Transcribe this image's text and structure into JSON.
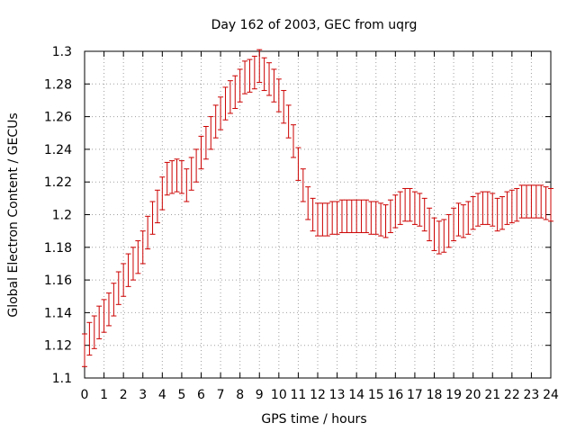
{
  "chart_data": {
    "type": "line",
    "title": "Day 162 of 2003, GEC from uqrg",
    "xlabel": "GPS time / hours",
    "ylabel": "Global Electron Content / GECUs",
    "xlim": [
      0,
      24
    ],
    "ylim": [
      1.1,
      1.3
    ],
    "grid": true,
    "error_bar": 0.01,
    "xticks": [
      "0",
      "1",
      "2",
      "3",
      "4",
      "5",
      "6",
      "7",
      "8",
      "9",
      "10",
      "11",
      "12",
      "13",
      "14",
      "15",
      "16",
      "17",
      "18",
      "19",
      "20",
      "21",
      "22",
      "23",
      "24"
    ],
    "yticks": [
      "1.1",
      "1.12",
      "1.14",
      "1.16",
      "1.18",
      "1.2",
      "1.22",
      "1.24",
      "1.26",
      "1.28",
      "1.3"
    ],
    "series_color": "#cc0000",
    "x": [
      0,
      0.25,
      0.5,
      0.75,
      1,
      1.25,
      1.5,
      1.75,
      2,
      2.25,
      2.5,
      2.75,
      3,
      3.25,
      3.5,
      3.75,
      4,
      4.25,
      4.5,
      4.75,
      5,
      5.25,
      5.5,
      5.75,
      6,
      6.25,
      6.5,
      6.75,
      7,
      7.25,
      7.5,
      7.75,
      8,
      8.25,
      8.5,
      8.75,
      9,
      9.25,
      9.5,
      9.75,
      10,
      10.25,
      10.5,
      10.75,
      11,
      11.25,
      11.5,
      11.75,
      12,
      12.25,
      12.5,
      12.75,
      13,
      13.25,
      13.5,
      13.75,
      14,
      14.25,
      14.5,
      14.75,
      15,
      15.25,
      15.5,
      15.75,
      16,
      16.25,
      16.5,
      16.75,
      17,
      17.25,
      17.5,
      17.75,
      18,
      18.25,
      18.5,
      18.75,
      19,
      19.25,
      19.5,
      19.75,
      20,
      20.25,
      20.5,
      20.75,
      21,
      21.25,
      21.5,
      21.75,
      22,
      22.25,
      22.5,
      22.75,
      23,
      23.25,
      23.5,
      23.75,
      24
    ],
    "y": [
      1.117,
      1.124,
      1.128,
      1.134,
      1.138,
      1.142,
      1.148,
      1.155,
      1.16,
      1.166,
      1.17,
      1.174,
      1.18,
      1.189,
      1.198,
      1.205,
      1.213,
      1.222,
      1.223,
      1.224,
      1.223,
      1.218,
      1.225,
      1.23,
      1.238,
      1.244,
      1.25,
      1.257,
      1.262,
      1.268,
      1.272,
      1.275,
      1.279,
      1.284,
      1.285,
      1.287,
      1.291,
      1.286,
      1.283,
      1.279,
      1.273,
      1.266,
      1.257,
      1.245,
      1.231,
      1.218,
      1.207,
      1.2,
      1.197,
      1.197,
      1.197,
      1.198,
      1.198,
      1.199,
      1.199,
      1.199,
      1.199,
      1.199,
      1.199,
      1.198,
      1.198,
      1.197,
      1.196,
      1.199,
      1.202,
      1.204,
      1.206,
      1.206,
      1.204,
      1.203,
      1.2,
      1.194,
      1.188,
      1.186,
      1.187,
      1.19,
      1.194,
      1.197,
      1.196,
      1.198,
      1.201,
      1.203,
      1.204,
      1.204,
      1.203,
      1.2,
      1.201,
      1.204,
      1.205,
      1.206,
      1.208,
      1.208,
      1.208,
      1.208,
      1.208,
      1.207,
      1.206
    ]
  }
}
